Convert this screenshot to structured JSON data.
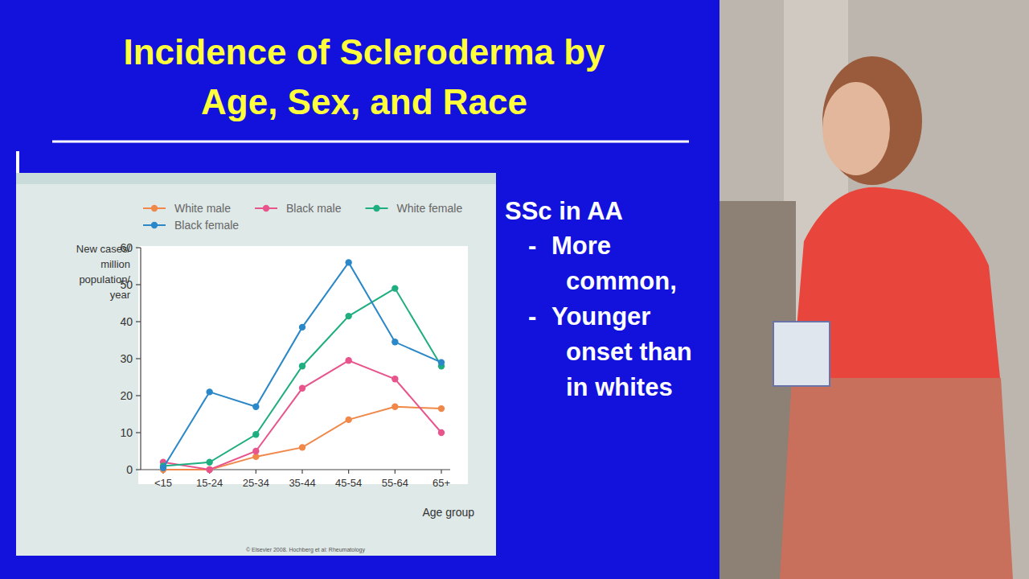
{
  "chart_data": {
    "type": "line",
    "title": "Incidence of Scleroderma by Age, Sex, and Race",
    "ylabel": [
      "New cases/",
      "million",
      "population/",
      "year"
    ],
    "xlabel": "Age group",
    "categories": [
      "<15",
      "15-24",
      "25-34",
      "35-44",
      "45-54",
      "55-64",
      "65+"
    ],
    "series": [
      {
        "name": "White male",
        "color": "#f0884a",
        "values": [
          0,
          0,
          3.5,
          6,
          13.5,
          17,
          16.5
        ]
      },
      {
        "name": "Black male",
        "color": "#e8548c",
        "values": [
          2,
          0,
          5,
          22,
          29.5,
          24.5,
          10
        ]
      },
      {
        "name": "White female",
        "color": "#1fae80",
        "values": [
          1,
          2,
          9.5,
          28,
          41.5,
          49,
          28
        ]
      },
      {
        "name": "Black female",
        "color": "#2b88c8",
        "values": [
          0.5,
          21,
          17,
          38.5,
          56,
          34.5,
          29
        ]
      }
    ],
    "ylim": [
      0,
      60
    ],
    "yticks": [
      0,
      10,
      20,
      30,
      40,
      50,
      60
    ],
    "grid": false,
    "legend": "top",
    "marker": "circle",
    "source": "© Elsevier 2008. Hochberg et al: Rheumatology",
    "annotation": {
      "heading": "SSc in AA",
      "bullets": [
        [
          "More",
          "common,"
        ],
        [
          "Younger",
          "onset  than",
          "in whites"
        ]
      ]
    }
  }
}
